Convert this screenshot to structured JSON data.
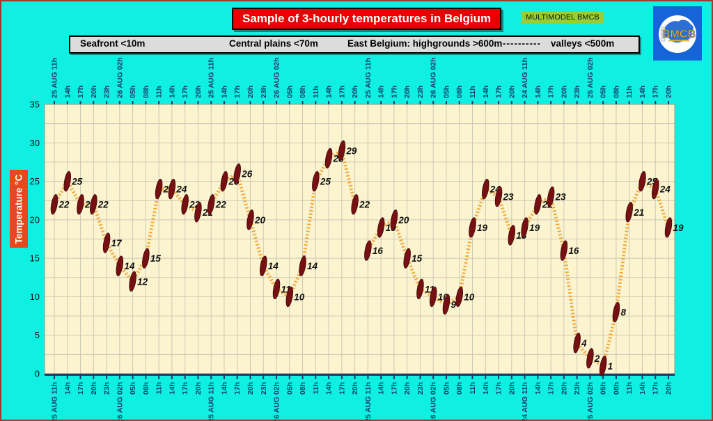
{
  "header": {
    "title": "Sample of 3-hourly temperatures in Belgium",
    "badge": "MULTIMODEL BMCB",
    "logo_text": "BMCB"
  },
  "legend": {
    "items": [
      "Seafront <10m",
      "Central plains <70m",
      "East Belgium: highgrounds >600m",
      "----------",
      "valleys <500m"
    ]
  },
  "colors": {
    "background": "#0ff0e2",
    "frame_border": "#a03a2a",
    "title_bg": "#ea0000",
    "title_text": "#ffffff",
    "badge_bg": "#9acd32",
    "badge_text": "#1a1a00",
    "logo_bg": "#1565d8",
    "logo_map": "#2e6fd2",
    "logo_text_color": "#e8b020",
    "legend_bg": "#dcdcdc",
    "legend_text": "#000000",
    "ylabel_bg": "#e8481c",
    "ylabel_text": "#ffffff",
    "plot_bg": "#fcf4cf",
    "grid": "#c9c9b4",
    "plot_border": "#9a9a8a",
    "axis": "#1b3a6b",
    "tick_label": "#14386b",
    "line": "#f2a02e",
    "marker": "#771013",
    "marker_edge": "#3d0808",
    "value_label": "#101010",
    "ytick_label": "#111111"
  },
  "chart_data": {
    "type": "line",
    "title": "Sample of 3-hourly temperatures in Belgium",
    "ylabel": "Temperature  °C",
    "xlabel": "",
    "ylim": [
      0,
      35
    ],
    "y_ticks": [
      0,
      5,
      10,
      15,
      20,
      25,
      30,
      35
    ],
    "y_minor_step": 2.5,
    "grid": true,
    "legend_position": "top",
    "x_tick_groups": [
      [
        "25 AUG  11h",
        "14h",
        "17h",
        "20h",
        "23h",
        "26 AUG 02h",
        "05h",
        "08h",
        "11h",
        "14h",
        "17h",
        "20h"
      ],
      [
        "25 AUG  11h",
        "14h",
        "17h",
        "20h",
        "23h",
        "26 AUG 02h",
        "05h",
        "08h",
        "11h",
        "14h",
        "17h",
        "20h"
      ],
      [
        "25 AUG  11h",
        "14h",
        "17h",
        "20h",
        "23h",
        "26 AUG 02h",
        "05h",
        "08h",
        "11h",
        "14h",
        "17h",
        "20h"
      ],
      [
        "24 AUG  11h",
        "14h",
        "17h",
        "20h",
        "23h",
        "25 AUG 02h",
        "05h",
        "08h",
        "11h",
        "14h",
        "17h",
        "20h"
      ]
    ],
    "series": [
      {
        "name": "Seafront <10m",
        "values": [
          22,
          25,
          22,
          22,
          17,
          14,
          12,
          15,
          24,
          24,
          22,
          21
        ]
      },
      {
        "name": "Central plains <70m",
        "values": [
          22,
          25,
          26,
          20,
          14,
          11,
          10,
          14,
          25,
          28,
          29,
          22
        ]
      },
      {
        "name": "East Belgium: highgrounds >600m",
        "values": [
          16,
          19,
          20,
          15,
          11,
          10,
          9,
          10,
          19,
          24,
          23,
          18
        ]
      },
      {
        "name": "valleys <500m",
        "values": [
          19,
          22,
          23,
          16,
          4,
          2,
          1,
          8,
          21,
          25,
          24,
          19
        ]
      }
    ]
  }
}
